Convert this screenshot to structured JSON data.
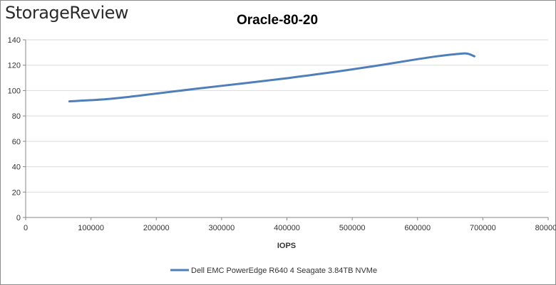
{
  "logo_text": "StorageReview",
  "chart_data": {
    "type": "line",
    "title": "Oracle-80-20",
    "xlabel": "IOPS",
    "ylabel": "",
    "xlim": [
      0,
      800000
    ],
    "ylim": [
      0,
      140
    ],
    "x_ticks": [
      0,
      100000,
      200000,
      300000,
      400000,
      500000,
      600000,
      700000,
      800000
    ],
    "y_ticks": [
      0,
      20,
      40,
      60,
      80,
      100,
      120,
      140
    ],
    "grid": "horizontal",
    "legend_position": "bottom",
    "colors": {
      "series": "#4f7fba",
      "grid": "#d9d9d9",
      "axis": "#868686"
    },
    "series": [
      {
        "name": "Dell EMC PowerEdge R640 4 Seagate 3.84TB NVMe",
        "x": [
          67000,
          130000,
          198000,
          262000,
          330000,
          396000,
          463000,
          530000,
          597000,
          630000,
          665000,
          677000,
          687000
        ],
        "y": [
          91.5,
          93.5,
          97.5,
          101.5,
          105.5,
          109.5,
          114,
          119,
          124.5,
          127,
          129,
          129,
          127
        ]
      }
    ]
  }
}
